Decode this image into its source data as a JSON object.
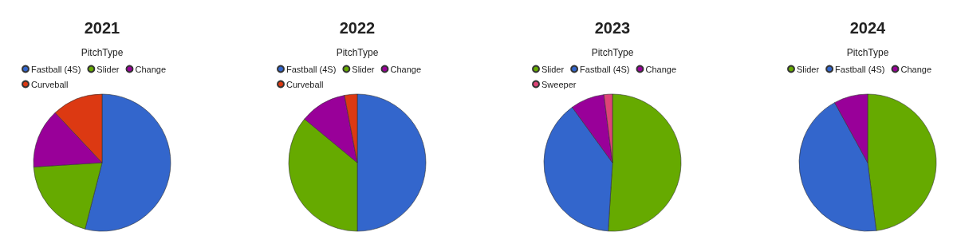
{
  "chart_data": [
    {
      "type": "pie",
      "title": "2021",
      "legend_title": "PitchType",
      "legend": "top",
      "categories": [
        "Fastball (4S)",
        "Slider",
        "Change",
        "Curveball"
      ],
      "values": [
        54,
        20,
        14,
        12
      ],
      "colors": [
        "#3366cc",
        "#66aa00",
        "#990099",
        "#dc3912"
      ]
    },
    {
      "type": "pie",
      "title": "2022",
      "legend_title": "PitchType",
      "legend": "top",
      "categories": [
        "Fastball (4S)",
        "Slider",
        "Change",
        "Curveball"
      ],
      "values": [
        50,
        36,
        11,
        3
      ],
      "colors": [
        "#3366cc",
        "#66aa00",
        "#990099",
        "#dc3912"
      ]
    },
    {
      "type": "pie",
      "title": "2023",
      "legend_title": "PitchType",
      "legend": "top",
      "categories": [
        "Slider",
        "Fastball (4S)",
        "Change",
        "Sweeper"
      ],
      "values": [
        51,
        39,
        8,
        2
      ],
      "colors": [
        "#66aa00",
        "#3366cc",
        "#990099",
        "#dd4477"
      ]
    },
    {
      "type": "pie",
      "title": "2024",
      "legend_title": "PitchType",
      "legend": "top",
      "categories": [
        "Slider",
        "Fastball (4S)",
        "Change"
      ],
      "values": [
        48,
        44,
        8
      ],
      "colors": [
        "#66aa00",
        "#3366cc",
        "#990099"
      ]
    }
  ]
}
